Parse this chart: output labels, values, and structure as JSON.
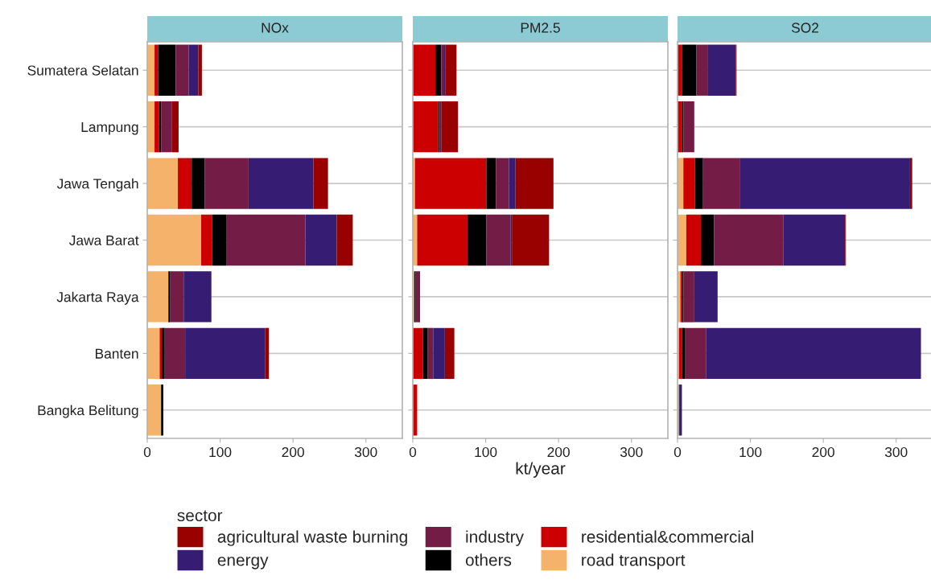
{
  "chart_data": [
    {
      "type": "bar",
      "orientation": "horizontal",
      "stacked": true,
      "title": "NOx",
      "categories": [
        "Sumatera Selatan",
        "Lampung",
        "Jawa Tengah",
        "Jawa Barat",
        "Jakarta Raya",
        "Banten",
        "Bangka Belitung"
      ],
      "xlim": [
        0,
        350
      ],
      "xticks": [
        0,
        100,
        200,
        300
      ],
      "grid": "y",
      "legend": "bottom",
      "legend_title": "sector",
      "series": [
        {
          "name": "road transport",
          "color": "#f5b26b",
          "values": [
            10,
            10,
            42,
            74,
            29,
            17,
            19
          ]
        },
        {
          "name": "residential&commercial",
          "color": "#cc0000",
          "values": [
            5,
            6,
            19,
            15,
            null,
            3,
            null
          ]
        },
        {
          "name": "others",
          "color": "#000000",
          "values": [
            24,
            3,
            18,
            20,
            2,
            4,
            3
          ]
        },
        {
          "name": "industry",
          "color": "#731c45",
          "values": [
            18,
            15,
            60,
            108,
            19,
            28,
            null
          ]
        },
        {
          "name": "energy",
          "color": "#361c72",
          "values": [
            13,
            null,
            89,
            43,
            38,
            110,
            null
          ]
        },
        {
          "name": "agricultural waste burning",
          "color": "#990000",
          "values": [
            5,
            9,
            20,
            22,
            null,
            5,
            null
          ]
        }
      ]
    },
    {
      "type": "bar",
      "orientation": "horizontal",
      "stacked": true,
      "title": "PM2.5",
      "xlabel": "kt/year",
      "categories": [
        "Sumatera Selatan",
        "Lampung",
        "Jawa Tengah",
        "Jawa Barat",
        "Jakarta Raya",
        "Banten",
        "Bangka Belitung"
      ],
      "xlim": [
        0,
        350
      ],
      "xticks": [
        0,
        100,
        200,
        300
      ],
      "grid": "y",
      "tick_labels": "x",
      "series": [
        {
          "name": "road transport",
          "color": "#f5b26b",
          "values": [
            null,
            null,
            3,
            6,
            2,
            null,
            null
          ]
        },
        {
          "name": "residential&commercial",
          "color": "#cc0000",
          "values": [
            31,
            35,
            98,
            69,
            null,
            14,
            6
          ]
        },
        {
          "name": "others",
          "color": "#000000",
          "values": [
            8,
            2,
            13,
            26,
            2,
            6,
            null
          ]
        },
        {
          "name": "industry",
          "color": "#731c45",
          "values": [
            3,
            null,
            18,
            33,
            6,
            8,
            null
          ]
        },
        {
          "name": "energy",
          "color": "#361c72",
          "values": [
            3,
            2,
            9,
            2,
            null,
            16,
            null
          ]
        },
        {
          "name": "agricultural waste burning",
          "color": "#990000",
          "values": [
            15,
            23,
            52,
            51,
            null,
            13,
            null
          ]
        }
      ]
    },
    {
      "type": "bar",
      "orientation": "horizontal",
      "stacked": true,
      "title": "SO2",
      "categories": [
        "Sumatera Selatan",
        "Lampung",
        "Jawa Tengah",
        "Jawa Barat",
        "Jakarta Raya",
        "Banten",
        "Bangka Belitung"
      ],
      "xlim": [
        0,
        350
      ],
      "xticks": [
        0,
        100,
        200,
        300
      ],
      "grid": "y",
      "tick_labels": "x",
      "series": [
        {
          "name": "road transport",
          "color": "#f5b26b",
          "values": [
            null,
            null,
            8,
            12,
            4,
            2,
            2
          ]
        },
        {
          "name": "residential&commercial",
          "color": "#cc0000",
          "values": [
            6,
            6,
            16,
            20,
            2,
            4,
            null
          ]
        },
        {
          "name": "others",
          "color": "#000000",
          "values": [
            20,
            2,
            11,
            18,
            2,
            4,
            1
          ]
        },
        {
          "name": "industry",
          "color": "#731c45",
          "values": [
            15,
            15,
            51,
            95,
            15,
            29,
            null
          ]
        },
        {
          "name": "energy",
          "color": "#361c72",
          "values": [
            39,
            null,
            233,
            85,
            32,
            295,
            3
          ]
        },
        {
          "name": "agricultural waste burning",
          "color": "#990000",
          "values": [
            1,
            null,
            3,
            1,
            null,
            null,
            null
          ]
        }
      ]
    }
  ]
}
